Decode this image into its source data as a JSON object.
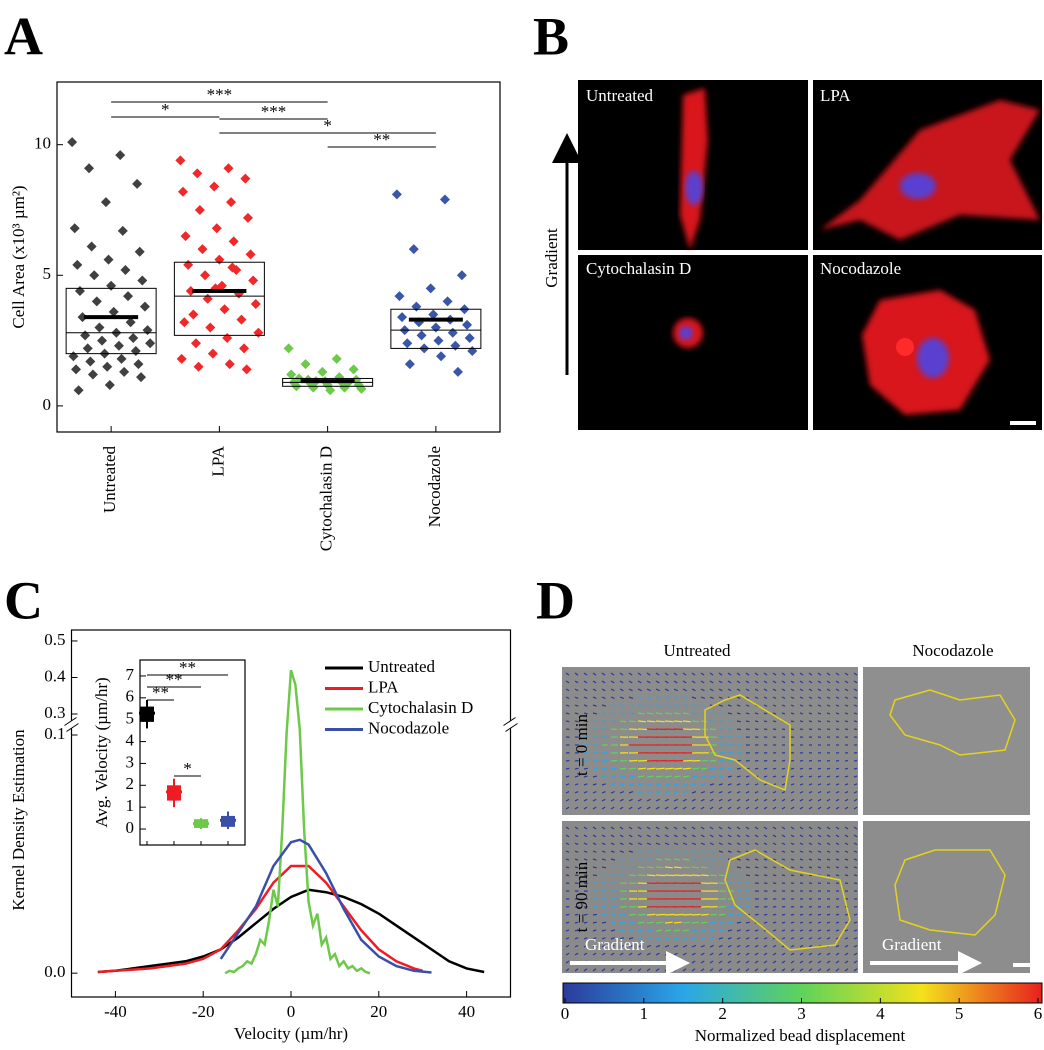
{
  "panel_labels": [
    "A",
    "B",
    "C",
    "D"
  ],
  "chart_data": [
    {
      "type": "box-strip",
      "y_label": "Cell Area (x10³ µm²)",
      "ylim": [
        -1,
        12.4
      ],
      "yticks": [
        0,
        5,
        10
      ],
      "categories": [
        "Untreated",
        "LPA",
        "Cytochalasin D",
        "Nocodazole"
      ],
      "groups": [
        {
          "color": "#404040",
          "q1": 2.0,
          "median": 2.8,
          "q3": 4.5,
          "mean": 3.4,
          "values": [
            10.1,
            9.6,
            9.1,
            8.5,
            7.8,
            6.8,
            6.7,
            6.1,
            5.9,
            5.6,
            5.4,
            5.2,
            5.0,
            4.8,
            4.6,
            4.4,
            4.2,
            4.0,
            3.8,
            3.6,
            3.4,
            3.2,
            3.0,
            2.9,
            2.8,
            2.7,
            2.6,
            2.5,
            2.4,
            2.3,
            2.2,
            2.1,
            2.0,
            1.9,
            1.8,
            1.7,
            1.6,
            1.5,
            1.4,
            1.3,
            1.2,
            1.1,
            0.8,
            0.6
          ]
        },
        {
          "color": "#f0282a",
          "q1": 2.7,
          "median": 4.2,
          "q3": 5.5,
          "mean": 4.4,
          "values": [
            9.4,
            9.1,
            8.9,
            8.7,
            8.4,
            8.2,
            7.8,
            7.5,
            7.2,
            6.8,
            6.5,
            6.3,
            6.0,
            5.8,
            5.6,
            5.4,
            5.2,
            5.0,
            4.8,
            4.6,
            4.4,
            4.3,
            4.1,
            3.9,
            3.7,
            3.5,
            3.3,
            3.0,
            2.8,
            2.6,
            2.4,
            2.2,
            2.0,
            1.8,
            1.6,
            1.5,
            1.4,
            4.5,
            3.2,
            5.3
          ]
        },
        {
          "color": "#6cc94a",
          "q1": 0.75,
          "median": 0.9,
          "q3": 1.05,
          "mean": 0.95,
          "values": [
            2.2,
            1.8,
            1.6,
            1.4,
            1.3,
            1.2,
            1.1,
            1.0,
            1.0,
            0.95,
            0.9,
            0.9,
            0.85,
            0.8,
            0.8,
            0.75,
            0.7,
            0.7,
            0.65,
            0.6,
            1.05,
            0.85,
            0.95
          ]
        },
        {
          "color": "#3a56a8",
          "q1": 2.2,
          "median": 2.9,
          "q3": 3.7,
          "mean": 3.3,
          "values": [
            8.1,
            7.9,
            6.0,
            5.0,
            4.5,
            4.2,
            4.0,
            3.8,
            3.7,
            3.5,
            3.4,
            3.3,
            3.2,
            3.1,
            3.0,
            2.9,
            2.8,
            2.7,
            2.6,
            2.5,
            2.4,
            2.3,
            2.2,
            2.1,
            1.9,
            1.6,
            1.3
          ]
        }
      ],
      "significance": [
        "***",
        "*",
        "***",
        "*",
        "**"
      ]
    },
    {
      "type": "line",
      "x_label": "Velocity (µm/hr)",
      "y_label": "Kernel Density Estimation",
      "xlim": [
        -50,
        50
      ],
      "xticks": [
        -40,
        -20,
        0,
        20,
        40
      ],
      "ylim": [
        -0.01,
        0.53
      ],
      "y_break": [
        0.1,
        0.3
      ],
      "yticks": [
        {
          "value": 0,
          "label": "0.0"
        },
        0.1,
        0.3,
        0.4,
        0.5
      ],
      "series": [
        {
          "name": "Untreated",
          "color": "#000000",
          "x": [
            -44,
            -40,
            -36,
            -32,
            -28,
            -24,
            -20,
            -16,
            -12,
            -8,
            -4,
            0,
            4,
            8,
            12,
            16,
            20,
            24,
            28,
            32,
            36,
            40,
            44
          ],
          "values": [
            0.0005,
            0.001,
            0.002,
            0.003,
            0.004,
            0.005,
            0.007,
            0.01,
            0.015,
            0.021,
            0.027,
            0.032,
            0.035,
            0.034,
            0.032,
            0.029,
            0.025,
            0.02,
            0.015,
            0.01,
            0.005,
            0.002,
            0.0005
          ]
        },
        {
          "name": "LPA",
          "color": "#ee1c24",
          "x": [
            -44,
            -40,
            -36,
            -32,
            -28,
            -24,
            -20,
            -16,
            -12,
            -8,
            -4,
            0,
            4,
            8,
            12,
            16,
            20,
            24,
            28,
            30
          ],
          "values": [
            0.0005,
            0.001,
            0.0015,
            0.002,
            0.003,
            0.004,
            0.006,
            0.01,
            0.018,
            0.027,
            0.038,
            0.045,
            0.045,
            0.038,
            0.028,
            0.018,
            0.01,
            0.005,
            0.002,
            0.001
          ]
        },
        {
          "name": "Cytochalasin D",
          "color": "#6cc94a",
          "x": [
            -15,
            -14,
            -13,
            -12,
            -11,
            -10,
            -9,
            -8,
            -7,
            -6,
            -5,
            -4,
            -3,
            -2,
            -1,
            0,
            1,
            2,
            3,
            4,
            5,
            6,
            7,
            8,
            9,
            10,
            11,
            12,
            13,
            14,
            15,
            16,
            17,
            18
          ],
          "values": [
            0,
            0.001,
            0.0005,
            0.002,
            0.003,
            0.005,
            0.004,
            0.008,
            0.014,
            0.012,
            0.022,
            0.035,
            0.028,
            0.06,
            0.12,
            0.42,
            0.38,
            0.15,
            0.06,
            0.03,
            0.02,
            0.025,
            0.012,
            0.015,
            0.006,
            0.008,
            0.003,
            0.005,
            0.002,
            0.003,
            0.001,
            0.002,
            0.0005,
            0
          ]
        },
        {
          "name": "Nocodazole",
          "color": "#3a4fa8",
          "x": [
            -16,
            -12,
            -8,
            -4,
            0,
            2,
            4,
            8,
            12,
            16,
            20,
            24,
            28,
            32
          ],
          "values": [
            0.006,
            0.017,
            0.028,
            0.045,
            0.055,
            0.056,
            0.054,
            0.042,
            0.027,
            0.014,
            0.007,
            0.003,
            0.001,
            0.0003
          ]
        }
      ]
    },
    {
      "type": "box",
      "y_label": "Avg. Velocity (µm/hr)",
      "ylim": [
        -0.73,
        7.73
      ],
      "yticks": [
        0,
        1,
        2,
        3,
        4,
        5,
        6,
        7
      ],
      "boxes": [
        {
          "color": "#000000",
          "low": 4.6,
          "q1": 4.9,
          "mean": 5.3,
          "q3": 5.6,
          "high": 5.9
        },
        {
          "color": "#ee1c24",
          "low": 1.0,
          "q1": 1.3,
          "mean": 1.7,
          "q3": 2.0,
          "high": 2.3
        },
        {
          "color": "#6cc94a",
          "low": 0.0,
          "q1": 0.05,
          "mean": 0.25,
          "q3": 0.45,
          "high": 0.5
        },
        {
          "color": "#3a4fa8",
          "low": 0.0,
          "q1": 0.1,
          "mean": 0.4,
          "q3": 0.6,
          "high": 0.8
        }
      ],
      "significance": [
        "**",
        "**",
        "**",
        "*"
      ]
    }
  ],
  "micrographs": {
    "axis_label": "Gradient",
    "panels": [
      "Untreated",
      "LPA",
      "Cytochalasin D",
      "Nocodazole"
    ]
  },
  "displacement": {
    "columns": [
      "Untreated",
      "Nocodazole"
    ],
    "rows": [
      "t = 0 min",
      "t = 90 min"
    ],
    "arrow_labels": [
      "Gradient",
      "Gradient"
    ],
    "colorbar": {
      "label": "Normalized bead displacement",
      "ticks": [
        0,
        1,
        2,
        3,
        4,
        5,
        6
      ],
      "colormap": [
        "#2b3a9b",
        "#2aa6e8",
        "#5fd35a",
        "#f2e21b",
        "#e8201e"
      ]
    }
  }
}
